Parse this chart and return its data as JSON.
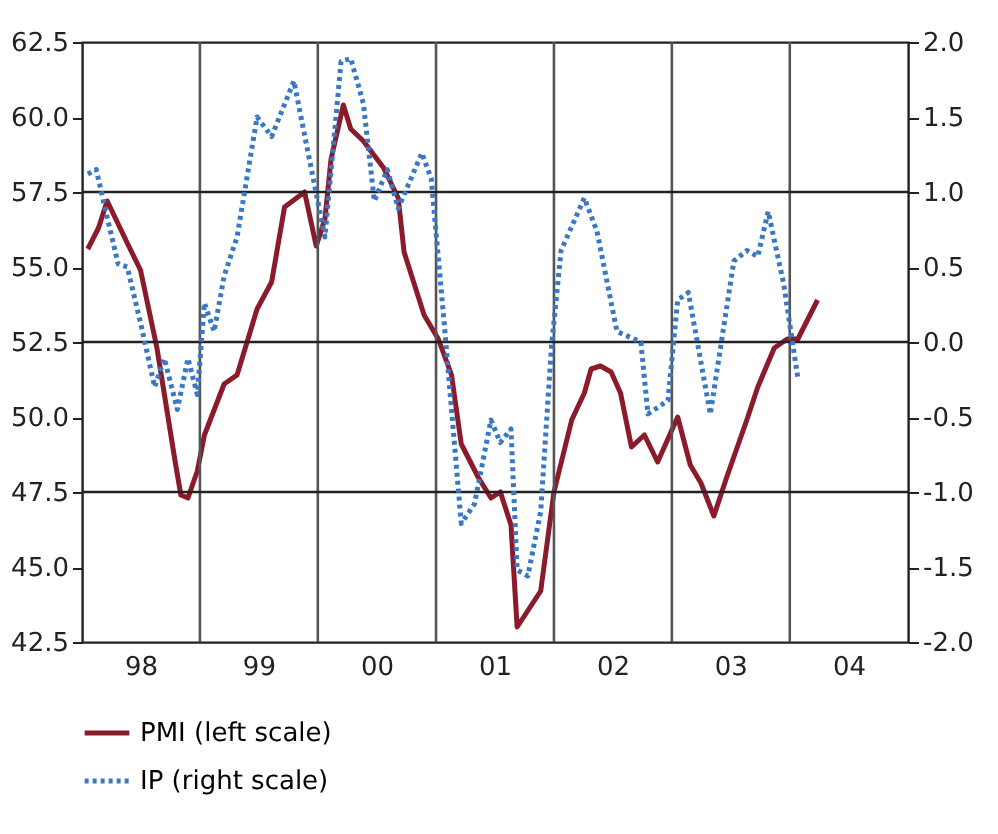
{
  "chart_data": {
    "type": "line",
    "xlim": [
      "1998-01-01",
      "2005-01-01"
    ],
    "xticks": [
      {
        "value": "1998-07-01",
        "label": "98"
      },
      {
        "value": "1999-07-01",
        "label": "99"
      },
      {
        "value": "2000-07-01",
        "label": "00"
      },
      {
        "value": "2001-07-01",
        "label": "01"
      },
      {
        "value": "2002-07-01",
        "label": "02"
      },
      {
        "value": "2003-07-01",
        "label": "03"
      },
      {
        "value": "2004-07-01",
        "label": "04"
      }
    ],
    "ylim": [
      42.5,
      62.5
    ],
    "yticks": [
      {
        "value": 42.5,
        "label": "42.5"
      },
      {
        "value": 45.0,
        "label": "45.0"
      },
      {
        "value": 47.5,
        "label": "47.5"
      },
      {
        "value": 50.0,
        "label": "50.0"
      },
      {
        "value": 52.5,
        "label": "52.5"
      },
      {
        "value": 55.0,
        "label": "55.0"
      },
      {
        "value": 57.5,
        "label": "57.5"
      },
      {
        "value": 60.0,
        "label": "60.0"
      },
      {
        "value": 62.5,
        "label": "62.5"
      }
    ],
    "y2lim": [
      -2.0,
      2.0
    ],
    "y2ticks": [
      {
        "value": -2.0,
        "label": "-2.0"
      },
      {
        "value": -1.5,
        "label": "-1.5"
      },
      {
        "value": -1.0,
        "label": "-1.0"
      },
      {
        "value": -0.5,
        "label": "-0.5"
      },
      {
        "value": 0.0,
        "label": "0.0"
      },
      {
        "value": 0.5,
        "label": "0.5"
      },
      {
        "value": 1.0,
        "label": "1.0"
      },
      {
        "value": 1.5,
        "label": "1.5"
      },
      {
        "value": 2.0,
        "label": "2.0"
      }
    ],
    "legend": "bottom",
    "grid": false,
    "ref_lines": [
      {
        "axis": "x",
        "value": "1999-01-01"
      },
      {
        "axis": "x",
        "value": "2000-01-01"
      },
      {
        "axis": "x",
        "value": "2001-01-01"
      },
      {
        "axis": "x",
        "value": "2002-01-01"
      },
      {
        "axis": "x",
        "value": "2003-01-01"
      },
      {
        "axis": "x",
        "value": "2004-01-01"
      },
      {
        "axis": "y",
        "value": 47.5
      },
      {
        "axis": "y",
        "value": 52.5
      },
      {
        "axis": "y",
        "value": 57.5
      }
    ],
    "series": [
      {
        "name": "PMI (left scale)",
        "color": "#8b1a2b",
        "line_style": "solid",
        "x": [
          "1998-01-19",
          "1998-02-21",
          "1998-03-20",
          "1998-05-21",
          "1998-07-01",
          "1998-08-21",
          "1998-10-15",
          "1998-11-03",
          "1998-11-25",
          "1998-12-24",
          "1999-01-15",
          "1999-03-17",
          "1999-04-26",
          "1999-06-27",
          "1999-08-11",
          "1999-09-20",
          "1999-11-21",
          "1999-12-27",
          "2000-01-23",
          "2000-02-11",
          "2000-03-20",
          "2000-04-12",
          "2000-05-21",
          "2000-07-23",
          "2000-09-06",
          "2000-09-24",
          "2000-11-25",
          "2001-01-08",
          "2001-02-18",
          "2001-03-20",
          "2001-05-11",
          "2001-06-20",
          "2001-07-19",
          "2001-08-21",
          "2001-09-09",
          "2001-11-21",
          "2002-01-01",
          "2002-02-25",
          "2002-04-05",
          "2002-04-26",
          "2002-05-25",
          "2002-06-27",
          "2002-07-26",
          "2002-08-29",
          "2002-10-08",
          "2002-11-18",
          "2003-01-19",
          "2003-02-27",
          "2003-04-01",
          "2003-05-11",
          "2003-06-20",
          "2003-08-21",
          "2003-09-24",
          "2003-11-14",
          "2003-12-24",
          "2004-01-26",
          "2004-03-27"
        ],
        "values": [
          55.6,
          56.3,
          57.2,
          55.8,
          54.9,
          52.3,
          48.6,
          47.4,
          47.3,
          48.2,
          49.4,
          51.1,
          51.4,
          53.6,
          54.5,
          57.0,
          57.5,
          55.7,
          56.6,
          58.6,
          60.4,
          59.6,
          59.2,
          58.3,
          57.3,
          55.5,
          53.4,
          52.6,
          51.4,
          49.1,
          48.0,
          47.3,
          47.5,
          46.4,
          43.0,
          44.2,
          47.5,
          49.9,
          50.8,
          51.6,
          51.7,
          51.5,
          50.8,
          49.0,
          49.4,
          48.5,
          50.0,
          48.4,
          47.8,
          46.7,
          48.0,
          49.9,
          51.0,
          52.3,
          52.6,
          52.6,
          53.9
        ]
      },
      {
        "name": "IP (right scale)",
        "color": "#3a78c4",
        "line_style": "dotted",
        "axis": "y2",
        "x": [
          "1998-01-19",
          "1998-02-14",
          "1998-03-20",
          "1998-04-23",
          "1998-05-21",
          "1998-07-01",
          "1998-08-14",
          "1998-09-13",
          "1998-10-23",
          "1998-11-25",
          "1998-12-24",
          "1999-01-15",
          "1999-02-14",
          "1999-03-17",
          "1999-04-26",
          "1999-06-27",
          "1999-08-11",
          "1999-10-19",
          "1999-12-02",
          "2000-01-23",
          "2000-03-13",
          "2000-04-12",
          "2000-05-21",
          "2000-06-24",
          "2000-08-03",
          "2000-09-06",
          "2000-11-18",
          "2000-12-17",
          "2001-01-26",
          "2001-03-20",
          "2001-04-30",
          "2001-06-20",
          "2001-07-19",
          "2001-08-21",
          "2001-09-09",
          "2001-10-12",
          "2001-11-21",
          "2001-12-24",
          "2002-01-23",
          "2002-04-05",
          "2002-05-14",
          "2002-07-15",
          "2002-09-27",
          "2002-10-19",
          "2002-12-20",
          "2003-01-19",
          "2003-02-21",
          "2003-04-30",
          "2003-07-12",
          "2003-08-21",
          "2003-09-24",
          "2003-10-26",
          "2003-12-13",
          "2004-01-26"
        ],
        "values": [
          1.12,
          1.15,
          0.83,
          0.52,
          0.5,
          0.13,
          -0.3,
          -0.11,
          -0.45,
          -0.11,
          -0.35,
          0.26,
          0.07,
          0.44,
          0.7,
          1.5,
          1.37,
          1.74,
          1.26,
          0.7,
          1.87,
          1.89,
          1.59,
          0.94,
          1.15,
          0.89,
          1.26,
          1.09,
          0.13,
          -1.21,
          -1.08,
          -0.52,
          -0.67,
          -0.58,
          -1.52,
          -1.56,
          -1.13,
          -0.04,
          0.61,
          0.96,
          0.74,
          0.07,
          0.0,
          -0.48,
          -0.39,
          0.28,
          0.33,
          -0.48,
          0.54,
          0.61,
          0.57,
          0.87,
          0.39,
          -0.24
        ]
      }
    ]
  }
}
